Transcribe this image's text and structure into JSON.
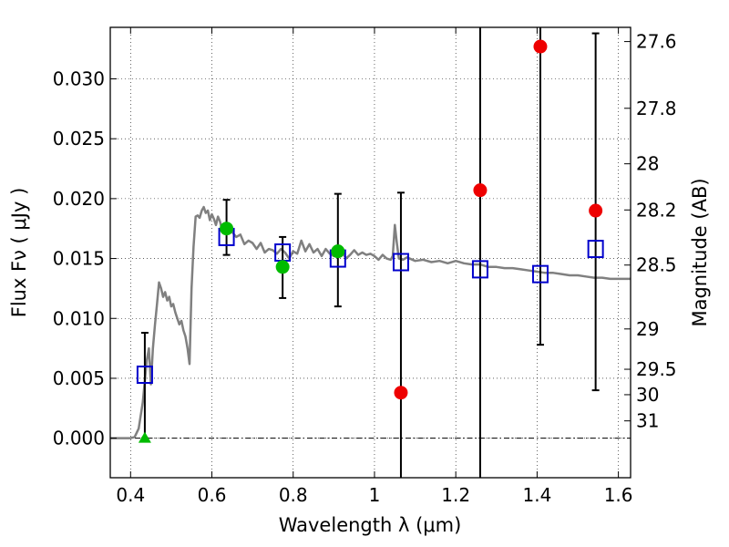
{
  "chart_data": {
    "type": "scatter",
    "xlabel": "Wavelength  λ (μm)",
    "ylabel": "Flux  Fν  ( μJy )",
    "ylabel_right": "Magnitude (AB)",
    "xlim": [
      0.35,
      1.63
    ],
    "ylim": [
      -0.0033,
      0.0343
    ],
    "x_ticks": [
      0.4,
      0.6,
      0.8,
      1.0,
      1.2,
      1.4,
      1.6
    ],
    "x_tick_labels": [
      "0.4",
      "0.6",
      "0.8",
      "1",
      "1.2",
      "1.4",
      "1.6"
    ],
    "y_ticks": [
      0.0,
      0.005,
      0.01,
      0.015,
      0.02,
      0.025,
      0.03
    ],
    "y_tick_labels": [
      "0.000",
      "0.005",
      "0.010",
      "0.015",
      "0.020",
      "0.025",
      "0.030"
    ],
    "right_ticks": [
      {
        "label": "27.6",
        "mag": 27.6
      },
      {
        "label": "27.8",
        "mag": 27.8
      },
      {
        "label": "28",
        "mag": 28.0
      },
      {
        "label": "28.2",
        "mag": 28.2
      },
      {
        "label": "28.5",
        "mag": 28.5
      },
      {
        "label": "29",
        "mag": 29.0
      },
      {
        "label": "29.5",
        "mag": 29.5
      },
      {
        "label": "30",
        "mag": 30.0
      },
      {
        "label": "31",
        "mag": 31.0
      }
    ],
    "grid": true,
    "zero_line": true,
    "model_spectrum": {
      "color": "#808080",
      "points": [
        [
          0.35,
          0.0
        ],
        [
          0.4,
          0.0
        ],
        [
          0.41,
          0.0001
        ],
        [
          0.42,
          0.0008
        ],
        [
          0.43,
          0.003
        ],
        [
          0.44,
          0.0065
        ],
        [
          0.445,
          0.0075
        ],
        [
          0.45,
          0.0045
        ],
        [
          0.455,
          0.0075
        ],
        [
          0.46,
          0.0095
        ],
        [
          0.465,
          0.0112
        ],
        [
          0.47,
          0.013
        ],
        [
          0.475,
          0.0125
        ],
        [
          0.48,
          0.0118
        ],
        [
          0.485,
          0.0122
        ],
        [
          0.49,
          0.0115
        ],
        [
          0.495,
          0.0118
        ],
        [
          0.5,
          0.011
        ],
        [
          0.505,
          0.0112
        ],
        [
          0.51,
          0.0105
        ],
        [
          0.515,
          0.01
        ],
        [
          0.52,
          0.0095
        ],
        [
          0.525,
          0.0098
        ],
        [
          0.53,
          0.009
        ],
        [
          0.535,
          0.0085
        ],
        [
          0.54,
          0.0075
        ],
        [
          0.545,
          0.0062
        ],
        [
          0.55,
          0.0125
        ],
        [
          0.555,
          0.016
        ],
        [
          0.56,
          0.0185
        ],
        [
          0.565,
          0.0186
        ],
        [
          0.57,
          0.0184
        ],
        [
          0.575,
          0.019
        ],
        [
          0.58,
          0.0193
        ],
        [
          0.585,
          0.0188
        ],
        [
          0.59,
          0.019
        ],
        [
          0.595,
          0.0182
        ],
        [
          0.6,
          0.0187
        ],
        [
          0.605,
          0.0183
        ],
        [
          0.61,
          0.0178
        ],
        [
          0.615,
          0.0185
        ],
        [
          0.62,
          0.0181
        ],
        [
          0.625,
          0.0174
        ],
        [
          0.63,
          0.0176
        ],
        [
          0.64,
          0.0173
        ],
        [
          0.65,
          0.0172
        ],
        [
          0.66,
          0.0168
        ],
        [
          0.67,
          0.017
        ],
        [
          0.68,
          0.0162
        ],
        [
          0.69,
          0.0165
        ],
        [
          0.7,
          0.0163
        ],
        [
          0.71,
          0.0158
        ],
        [
          0.72,
          0.0163
        ],
        [
          0.73,
          0.0155
        ],
        [
          0.74,
          0.0158
        ],
        [
          0.75,
          0.0157
        ],
        [
          0.76,
          0.0154
        ],
        [
          0.77,
          0.0158
        ],
        [
          0.78,
          0.0155
        ],
        [
          0.79,
          0.015
        ],
        [
          0.8,
          0.0156
        ],
        [
          0.81,
          0.0154
        ],
        [
          0.82,
          0.0165
        ],
        [
          0.83,
          0.0156
        ],
        [
          0.84,
          0.0162
        ],
        [
          0.85,
          0.0155
        ],
        [
          0.86,
          0.0158
        ],
        [
          0.87,
          0.0152
        ],
        [
          0.88,
          0.0158
        ],
        [
          0.89,
          0.0154
        ],
        [
          0.9,
          0.0152
        ],
        [
          0.91,
          0.0155
        ],
        [
          0.92,
          0.0156
        ],
        [
          0.93,
          0.015
        ],
        [
          0.94,
          0.0153
        ],
        [
          0.95,
          0.0157
        ],
        [
          0.96,
          0.0153
        ],
        [
          0.97,
          0.0155
        ],
        [
          0.98,
          0.0153
        ],
        [
          0.99,
          0.0154
        ],
        [
          1.0,
          0.0152
        ],
        [
          1.01,
          0.0149
        ],
        [
          1.02,
          0.0153
        ],
        [
          1.03,
          0.015
        ],
        [
          1.04,
          0.0149
        ],
        [
          1.045,
          0.0152
        ],
        [
          1.05,
          0.0178
        ],
        [
          1.055,
          0.0163
        ],
        [
          1.06,
          0.015
        ],
        [
          1.07,
          0.0149
        ],
        [
          1.08,
          0.0151
        ],
        [
          1.1,
          0.0148
        ],
        [
          1.12,
          0.0149
        ],
        [
          1.14,
          0.0147
        ],
        [
          1.16,
          0.0148
        ],
        [
          1.18,
          0.0146
        ],
        [
          1.2,
          0.0148
        ],
        [
          1.22,
          0.0146
        ],
        [
          1.24,
          0.0145
        ],
        [
          1.26,
          0.0145
        ],
        [
          1.28,
          0.0143
        ],
        [
          1.3,
          0.0143
        ],
        [
          1.32,
          0.0142
        ],
        [
          1.34,
          0.0142
        ],
        [
          1.36,
          0.0141
        ],
        [
          1.38,
          0.014
        ],
        [
          1.4,
          0.0139
        ],
        [
          1.42,
          0.0138
        ],
        [
          1.44,
          0.0138
        ],
        [
          1.46,
          0.0137
        ],
        [
          1.48,
          0.0136
        ],
        [
          1.5,
          0.0136
        ],
        [
          1.52,
          0.0135
        ],
        [
          1.54,
          0.0134
        ],
        [
          1.56,
          0.0134
        ],
        [
          1.58,
          0.0133
        ],
        [
          1.6,
          0.0133
        ],
        [
          1.63,
          0.0133
        ]
      ]
    },
    "model_photometry": {
      "color": "#0000cc",
      "points": [
        {
          "x": 0.435,
          "y": 0.0053
        },
        {
          "x": 0.636,
          "y": 0.0168
        },
        {
          "x": 0.774,
          "y": 0.0155
        },
        {
          "x": 0.91,
          "y": 0.015
        },
        {
          "x": 1.065,
          "y": 0.0147
        },
        {
          "x": 1.26,
          "y": 0.0141
        },
        {
          "x": 1.408,
          "y": 0.0137
        },
        {
          "x": 1.544,
          "y": 0.0158
        }
      ]
    },
    "error_bars": [
      {
        "x": 0.435,
        "low": 0.0,
        "high": 0.0088
      },
      {
        "x": 0.636,
        "low": 0.0153,
        "high": 0.0199
      },
      {
        "x": 0.774,
        "low": 0.0117,
        "high": 0.0168
      },
      {
        "x": 0.91,
        "low": 0.011,
        "high": 0.0204
      },
      {
        "x": 1.065,
        "low": -0.0033,
        "high": 0.0205
      },
      {
        "x": 1.26,
        "low": -0.0033,
        "high": 0.0343
      },
      {
        "x": 1.408,
        "low": 0.0078,
        "high": 0.0343
      },
      {
        "x": 1.544,
        "low": 0.004,
        "high": 0.0338
      }
    ],
    "detections": {
      "color": "#00bb00",
      "points": [
        {
          "x": 0.636,
          "y": 0.0175
        },
        {
          "x": 0.774,
          "y": 0.0143
        },
        {
          "x": 0.91,
          "y": 0.0156
        }
      ]
    },
    "upper_limit": {
      "color": "#00bb00",
      "points": [
        {
          "x": 0.435,
          "y": 0.0
        }
      ]
    },
    "nondetections": {
      "color": "#ee0000",
      "points": [
        {
          "x": 1.065,
          "y": 0.0038
        },
        {
          "x": 1.26,
          "y": 0.0207
        },
        {
          "x": 1.408,
          "y": 0.0327
        },
        {
          "x": 1.544,
          "y": 0.019
        }
      ]
    }
  }
}
